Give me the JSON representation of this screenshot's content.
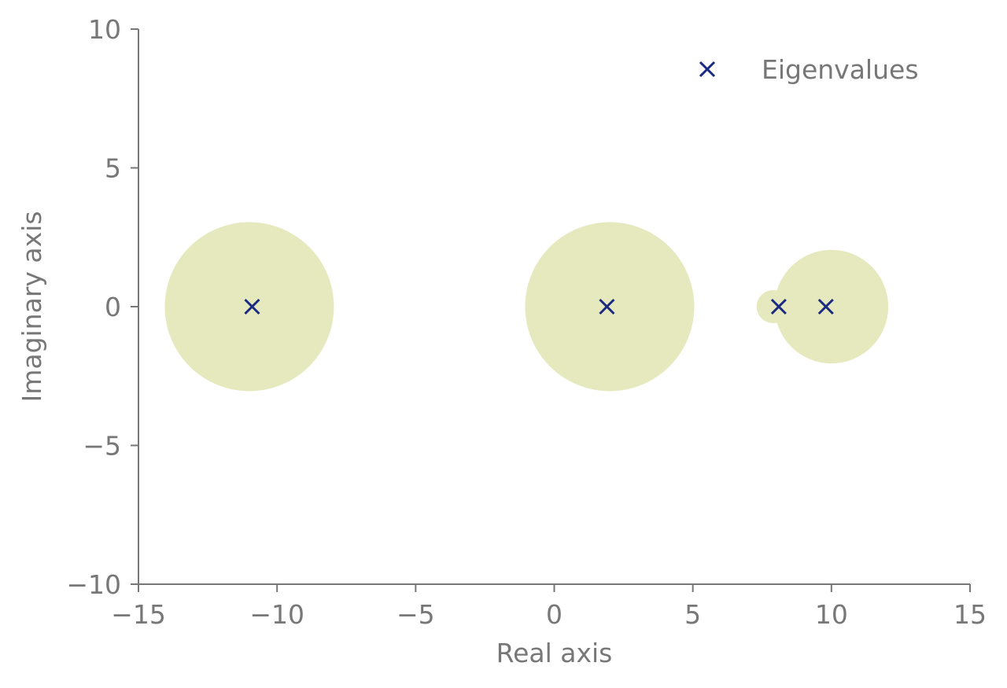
{
  "chart_data": {
    "type": "scatter",
    "title": "",
    "xlabel": "Real axis",
    "ylabel": "Imaginary axis",
    "xlim": [
      -15,
      15
    ],
    "ylim": [
      -10,
      10
    ],
    "xticks": [
      -15,
      -10,
      -5,
      0,
      5,
      10,
      15
    ],
    "yticks": [
      -10,
      -5,
      0,
      5,
      10
    ],
    "xtick_labels": [
      "−15",
      "−10",
      "−5",
      "0",
      "5",
      "10",
      "15"
    ],
    "ytick_labels": [
      "−10",
      "−5",
      "0",
      "5",
      "10"
    ],
    "grid": false,
    "legend": {
      "placement": "top-right",
      "entries": [
        "Eigenvalues"
      ]
    },
    "series": [
      {
        "name": "Eigenvalues",
        "marker": "x",
        "color": "#1a2a80",
        "x": [
          -10.9,
          1.9,
          8.1,
          9.8
        ],
        "y": [
          0,
          0,
          0,
          0
        ]
      }
    ],
    "discs": {
      "color": "#e6e9bd",
      "centers": [
        -11.0,
        2.0,
        7.9,
        10.0
      ],
      "radii": [
        3.05,
        3.05,
        0.6,
        2.05
      ]
    }
  }
}
